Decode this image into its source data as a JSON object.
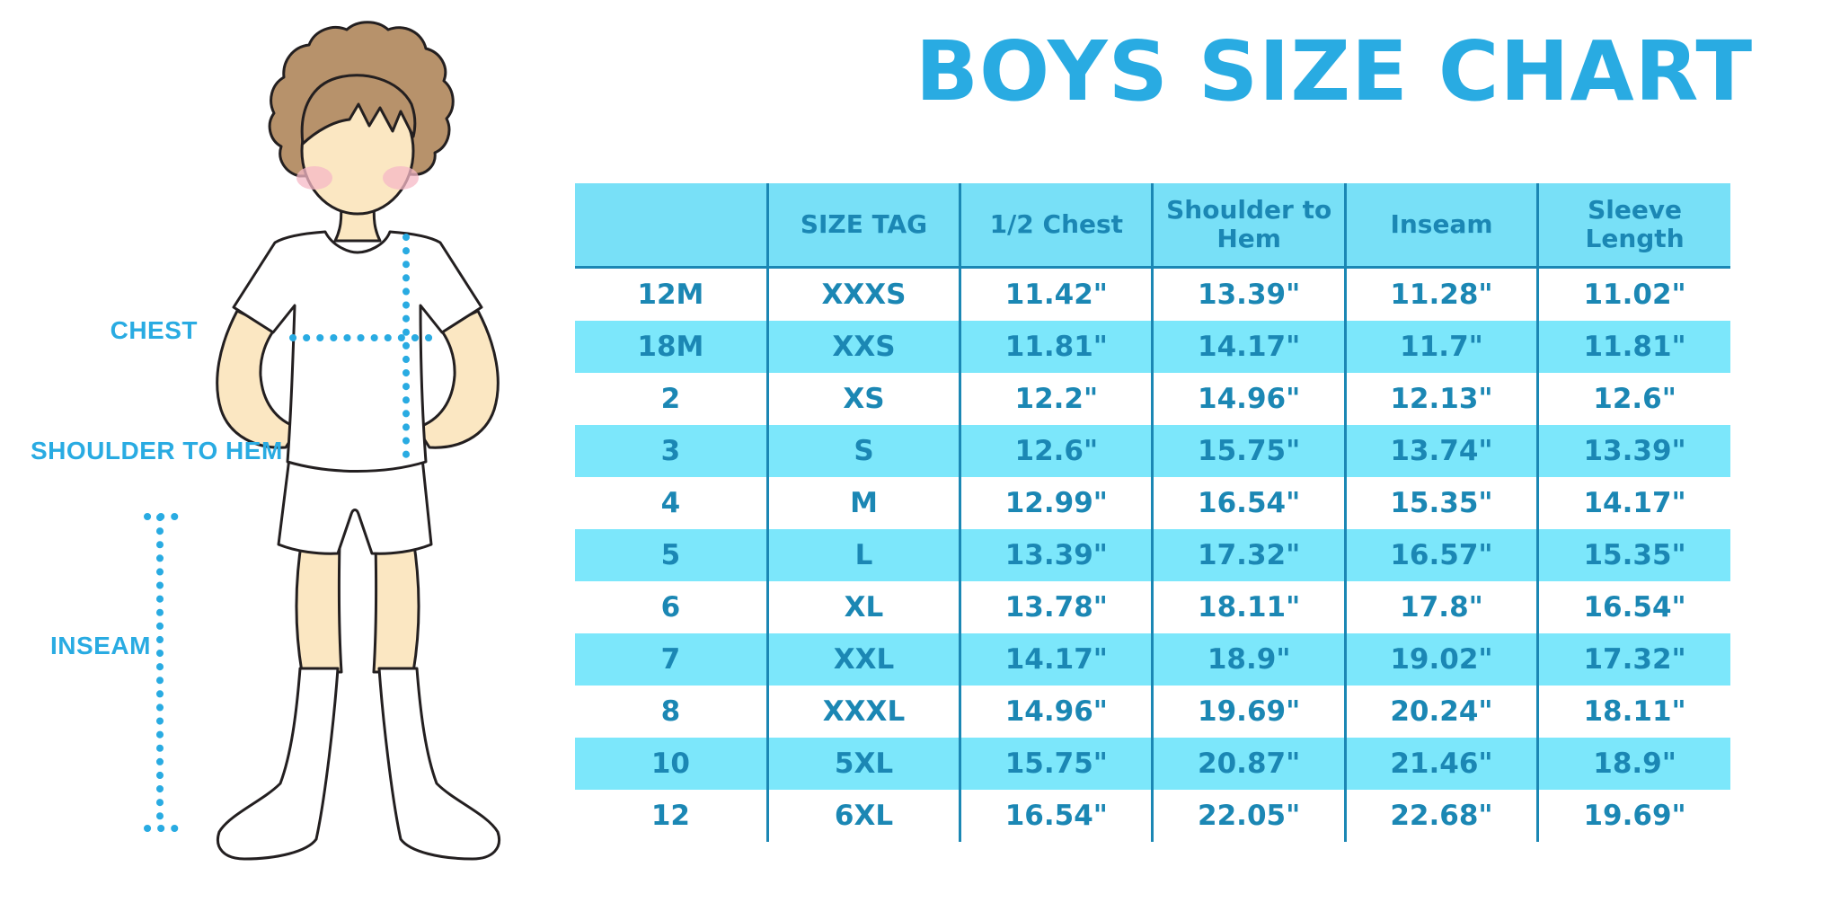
{
  "title": "BOYS SIZE CHART",
  "colors": {
    "accent_blue": "#29abe2",
    "table_text": "#1b87b4",
    "header_bg": "#78e0f7",
    "row_stripe": "#7ce7fb",
    "grid_line": "#1b87b4",
    "outline": "#231f20",
    "skin": "#fbe7c2",
    "hair": "#b7926b",
    "blush": "#f5b8c6",
    "garment_white": "#ffffff"
  },
  "figure": {
    "labels": {
      "chest": "CHEST",
      "shoulder_to_hem": "SHOULDER TO HEM",
      "inseam": "INSEAM"
    }
  },
  "table": {
    "columns": [
      "",
      "SIZE TAG",
      "1/2 Chest",
      "Shoulder to Hem",
      "Inseam",
      "Sleeve Length"
    ],
    "rows": [
      [
        "12M",
        "XXXS",
        "11.42\"",
        "13.39\"",
        "11.28\"",
        "11.02\""
      ],
      [
        "18M",
        "XXS",
        "11.81\"",
        "14.17\"",
        "11.7\"",
        "11.81\""
      ],
      [
        "2",
        "XS",
        "12.2\"",
        "14.96\"",
        "12.13\"",
        "12.6\""
      ],
      [
        "3",
        "S",
        "12.6\"",
        "15.75\"",
        "13.74\"",
        "13.39\""
      ],
      [
        "4",
        "M",
        "12.99\"",
        "16.54\"",
        "15.35\"",
        "14.17\""
      ],
      [
        "5",
        "L",
        "13.39\"",
        "17.32\"",
        "16.57\"",
        "15.35\""
      ],
      [
        "6",
        "XL",
        "13.78\"",
        "18.11\"",
        "17.8\"",
        "16.54\""
      ],
      [
        "7",
        "XXL",
        "14.17\"",
        "18.9\"",
        "19.02\"",
        "17.32\""
      ],
      [
        "8",
        "XXXL",
        "14.96\"",
        "19.69\"",
        "20.24\"",
        "18.11\""
      ],
      [
        "10",
        "5XL",
        "15.75\"",
        "20.87\"",
        "21.46\"",
        "18.9\""
      ],
      [
        "12",
        "6XL",
        "16.54\"",
        "22.05\"",
        "22.68\"",
        "19.69\""
      ]
    ],
    "striped_row_indices": [
      1,
      3,
      5,
      7,
      9
    ]
  }
}
